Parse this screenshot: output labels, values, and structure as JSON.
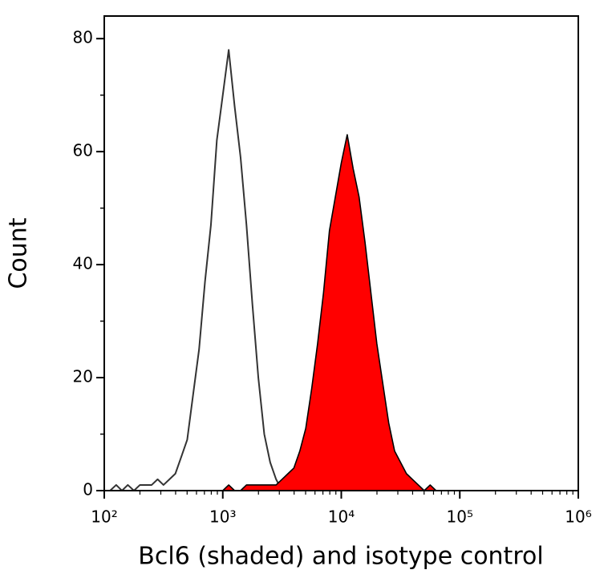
{
  "chart_data": {
    "type": "histogram-overlay",
    "xlabel": "Bcl6 (shaded) and isotype control",
    "ylabel": "Count",
    "xscale": "log",
    "xlim": [
      100,
      1000000
    ],
    "xticks": [
      {
        "value": 100,
        "label": "10²"
      },
      {
        "value": 1000,
        "label": "10³"
      },
      {
        "value": 10000,
        "label": "10⁴"
      },
      {
        "value": 100000,
        "label": "10⁵"
      },
      {
        "value": 1000000,
        "label": "10⁶"
      }
    ],
    "xminorticks": [
      200,
      300,
      400,
      500,
      600,
      700,
      800,
      900,
      2000,
      3000,
      4000,
      5000,
      6000,
      7000,
      8000,
      9000,
      20000,
      30000,
      40000,
      50000,
      60000,
      70000,
      80000,
      90000,
      200000,
      300000,
      400000,
      500000,
      600000,
      700000,
      800000,
      900000
    ],
    "ylim": [
      0,
      84
    ],
    "yticks": [
      0,
      20,
      40,
      60,
      80
    ],
    "yminorticks": [
      10,
      30,
      50,
      70
    ],
    "x": [
      100,
      112,
      126,
      141,
      158,
      178,
      200,
      224,
      251,
      282,
      316,
      355,
      398,
      447,
      501,
      562,
      631,
      708,
      794,
      891,
      1000,
      1122,
      1259,
      1413,
      1585,
      1778,
      1995,
      2239,
      2512,
      2818,
      3162,
      3548,
      3981,
      4467,
      5012,
      5623,
      6310,
      7079,
      7943,
      8913,
      10000,
      11220,
      12589,
      14125,
      15849,
      17783,
      19953,
      22387,
      25119,
      28184,
      31623,
      35481,
      39811,
      44668,
      50119,
      56234,
      63096,
      70795,
      79433,
      89125,
      100000,
      1000000
    ],
    "series": [
      {
        "color": "#333333",
        "fill": false,
        "values": [
          0,
          0,
          1,
          0,
          1,
          0,
          1,
          1,
          1,
          2,
          1,
          2,
          3,
          6,
          9,
          17,
          25,
          37,
          47,
          62,
          70,
          78,
          68,
          59,
          47,
          33,
          20,
          10,
          5,
          2,
          0,
          1,
          0,
          0,
          0,
          0,
          0,
          0,
          0,
          0,
          0,
          0,
          0,
          0,
          0,
          0,
          0,
          0,
          0,
          0,
          0,
          0,
          0,
          0,
          0,
          0,
          0,
          0,
          0,
          0,
          0,
          0
        ]
      },
      {
        "color": "#ff0000",
        "fill": true,
        "values": [
          0,
          0,
          0,
          0,
          0,
          0,
          0,
          0,
          0,
          0,
          0,
          0,
          0,
          0,
          0,
          0,
          0,
          0,
          0,
          0,
          0,
          1,
          0,
          0,
          1,
          1,
          1,
          1,
          1,
          1,
          2,
          3,
          4,
          7,
          11,
          18,
          26,
          35,
          46,
          52,
          58,
          63,
          57,
          52,
          44,
          35,
          26,
          19,
          12,
          7,
          5,
          3,
          2,
          1,
          0,
          1,
          0,
          0,
          0,
          0,
          0,
          0
        ]
      }
    ]
  }
}
